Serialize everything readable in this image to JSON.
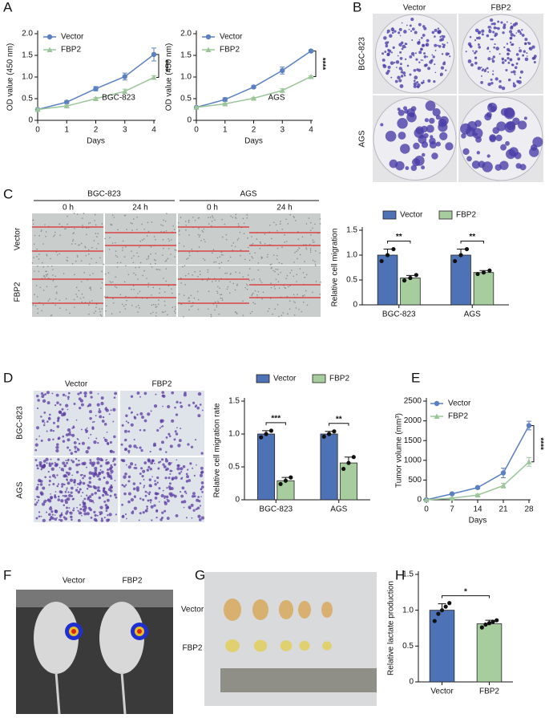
{
  "panel_labels": [
    "A",
    "B",
    "C",
    "D",
    "E",
    "F",
    "G",
    "H"
  ],
  "photos": {
    "B": {
      "columns": [
        "Vector",
        "FBP2"
      ],
      "rows": [
        "BGC-823",
        "AGS"
      ]
    },
    "C": {
      "groups": [
        "BGC-823",
        "AGS"
      ],
      "times": [
        "0 h",
        "24 h",
        "0 h",
        "24 h"
      ],
      "rows": [
        "Vector",
        "FBP2"
      ]
    },
    "D": {
      "columns": [
        "Vector",
        "FBP2"
      ],
      "rows": [
        "BGC-823",
        "AGS"
      ]
    },
    "F": {
      "columns": [
        "Vector",
        "FBP2"
      ]
    },
    "G": {
      "rows": [
        "Vector",
        "FBP2"
      ]
    }
  },
  "chart_data": [
    {
      "type": "line",
      "label": "BGC-823",
      "xlabel": "Days",
      "ylabel": "OD value (450 nm)",
      "x": [
        0,
        1,
        2,
        3,
        4
      ],
      "xlim": [
        0,
        4
      ],
      "xticks": [
        0,
        1,
        2,
        3,
        4
      ],
      "ylim": [
        0,
        2
      ],
      "yticks": [
        0,
        0.5,
        {
          "value": 1,
          "label": "1.0"
        },
        1.5,
        {
          "value": 2,
          "label": "2.0"
        }
      ],
      "significance": "****",
      "series": [
        {
          "name": "Vector",
          "color": "#5b80c2",
          "marker": "circle",
          "values": [
            0.25,
            0.42,
            0.73,
            1.01,
            1.52
          ],
          "errors": [
            0.02,
            0.03,
            0.05,
            0.08,
            0.15
          ]
        },
        {
          "name": "FBP2",
          "color": "#9cc59a",
          "marker": "triangle",
          "values": [
            0.25,
            0.33,
            0.5,
            0.67,
            0.99
          ],
          "errors": [
            0.02,
            0.02,
            0.03,
            0.05,
            0.04
          ]
        }
      ]
    },
    {
      "type": "line",
      "label": "AGS",
      "xlabel": "Days",
      "ylabel": "OD value (450 nm)",
      "x": [
        0,
        1,
        2,
        3,
        4
      ],
      "xlim": [
        0,
        4
      ],
      "xticks": [
        0,
        1,
        2,
        3,
        4
      ],
      "ylim": [
        0,
        2
      ],
      "yticks": [
        0,
        0.5,
        {
          "value": 1,
          "label": "1.0"
        },
        1.5,
        {
          "value": 2,
          "label": "2.0"
        }
      ],
      "significance": "****",
      "series": [
        {
          "name": "Vector",
          "color": "#5b80c2",
          "marker": "circle",
          "values": [
            0.3,
            0.48,
            0.77,
            1.15,
            1.6
          ],
          "errors": [
            0.02,
            0.04,
            0.03,
            0.08,
            0.03
          ]
        },
        {
          "name": "FBP2",
          "color": "#9cc59a",
          "marker": "triangle",
          "values": [
            0.3,
            0.38,
            0.51,
            0.69,
            1.01
          ],
          "errors": [
            0.02,
            0.02,
            0.02,
            0.04,
            0.02
          ]
        }
      ]
    },
    {
      "type": "bar",
      "ylabel": "Relative cell migration",
      "categories": [
        "BGC-823",
        "AGS"
      ],
      "ylim": [
        0,
        1.5
      ],
      "yticks": [
        0,
        0.5,
        {
          "value": 1,
          "label": "1.0"
        },
        1.5
      ],
      "significance": [
        "**",
        "**"
      ],
      "series": [
        {
          "name": "Vector",
          "color": "#4e72b6",
          "values": [
            1.0,
            1.0
          ],
          "errors": [
            0.12,
            0.12
          ],
          "points": [
            [
              0.88,
              1.0,
              1.12
            ],
            [
              0.88,
              1.0,
              1.12
            ]
          ]
        },
        {
          "name": "FBP2",
          "color": "#a7cd9f",
          "values": [
            0.54,
            0.65
          ],
          "errors": [
            0.05,
            0.04
          ],
          "points": [
            [
              0.49,
              0.54,
              0.6
            ],
            [
              0.62,
              0.65,
              0.69
            ]
          ]
        }
      ]
    },
    {
      "type": "bar",
      "ylabel": "Relative cell migration rate",
      "categories": [
        "BGC-823",
        "AGS"
      ],
      "ylim": [
        0,
        1.5
      ],
      "yticks": [
        0,
        0.5,
        {
          "value": 1,
          "label": "1.0"
        },
        1.5
      ],
      "significance": [
        "***",
        "**"
      ],
      "series": [
        {
          "name": "Vector",
          "color": "#4e72b6",
          "values": [
            1.0,
            1.0
          ],
          "errors": [
            0.05,
            0.04
          ],
          "points": [
            [
              0.95,
              1.0,
              1.05
            ],
            [
              0.96,
              1.0,
              1.04
            ]
          ]
        },
        {
          "name": "FBP2",
          "color": "#a7cd9f",
          "values": [
            0.29,
            0.56
          ],
          "errors": [
            0.05,
            0.09
          ],
          "points": [
            [
              0.24,
              0.29,
              0.34
            ],
            [
              0.47,
              0.56,
              0.65
            ]
          ]
        }
      ]
    },
    {
      "type": "line",
      "xlabel": "Days",
      "ylabel": "Tumor volume (mm³)",
      "x": [
        0,
        7,
        14,
        21,
        28
      ],
      "xlim": [
        0,
        28
      ],
      "xticks": [
        0,
        7,
        14,
        21,
        28
      ],
      "ylim": [
        0,
        2500
      ],
      "yticks": [
        0,
        500,
        1000,
        1500,
        2000,
        2500
      ],
      "significance": "****",
      "series": [
        {
          "name": "Vector",
          "color": "#5b80c2",
          "marker": "circle",
          "values": [
            0,
            150,
            310,
            680,
            1880
          ],
          "errors": [
            0,
            20,
            30,
            120,
            110
          ]
        },
        {
          "name": "FBP2",
          "color": "#9cc59a",
          "marker": "triangle",
          "values": [
            0,
            40,
            120,
            360,
            960
          ],
          "errors": [
            0,
            15,
            25,
            60,
            110
          ]
        }
      ]
    },
    {
      "type": "bar",
      "ylabel": "Relative lactate production",
      "categories": [
        "Vector",
        "FBP2"
      ],
      "ylim": [
        0,
        1.5
      ],
      "yticks": [
        0,
        0.5,
        {
          "value": 1,
          "label": "1.0"
        },
        1.5
      ],
      "significance": "*",
      "values": [
        1.0,
        0.81
      ],
      "errors": [
        0.09,
        0.05
      ],
      "colors": [
        "#4e72b6",
        "#a7cd9f"
      ],
      "points": [
        [
          0.85,
          0.95,
          1.0,
          1.05,
          1.1
        ],
        [
          0.76,
          0.8,
          0.82,
          0.84,
          0.86
        ]
      ]
    }
  ]
}
